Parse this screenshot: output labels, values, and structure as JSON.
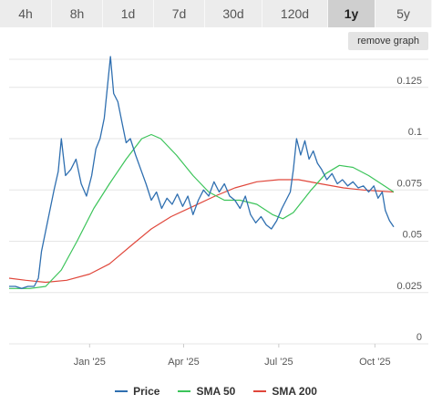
{
  "timeframe_tabs": [
    "4h",
    "8h",
    "1d",
    "7d",
    "30d",
    "120d",
    "1y",
    "5y"
  ],
  "active_tab": "1y",
  "remove_graph_label": "remove graph",
  "colors": {
    "price": "#2f6fb0",
    "sma50": "#3cc45a",
    "sma200": "#e0473b",
    "grid": "#e6e6e6",
    "tab_active": "#cfcfcf",
    "tab": "#ececec"
  },
  "chart_data": {
    "type": "line",
    "title": "",
    "xlabel": "",
    "ylabel": "",
    "x_ticks": [
      "Jan '25",
      "Apr '25",
      "Jul '25",
      "Oct '25"
    ],
    "x_tick_dates": [
      "2025-01-01",
      "2025-04-01",
      "2025-07-01",
      "2025-10-01"
    ],
    "x_range": [
      "2024-10-16",
      "2025-10-19"
    ],
    "y_ticks": [
      0,
      0.025,
      0.05,
      0.075,
      0.1,
      0.125
    ],
    "ylim": [
      0,
      0.14
    ],
    "y_axis_position": "right",
    "grid": "horizontal",
    "legend_position": "bottom",
    "series": [
      {
        "name": "Price",
        "points": [
          [
            "2024-10-16",
            0.028
          ],
          [
            "2024-10-22",
            0.028
          ],
          [
            "2024-10-28",
            0.027
          ],
          [
            "2024-11-03",
            0.028
          ],
          [
            "2024-11-09",
            0.028
          ],
          [
            "2024-11-13",
            0.032
          ],
          [
            "2024-11-16",
            0.045
          ],
          [
            "2024-11-20",
            0.055
          ],
          [
            "2024-11-24",
            0.065
          ],
          [
            "2024-11-28",
            0.075
          ],
          [
            "2024-12-02",
            0.084
          ],
          [
            "2024-12-05",
            0.1
          ],
          [
            "2024-12-09",
            0.082
          ],
          [
            "2024-12-14",
            0.085
          ],
          [
            "2024-12-19",
            0.09
          ],
          [
            "2024-12-24",
            0.078
          ],
          [
            "2024-12-29",
            0.072
          ],
          [
            "2025-01-03",
            0.082
          ],
          [
            "2025-01-07",
            0.095
          ],
          [
            "2025-01-11",
            0.1
          ],
          [
            "2025-01-15",
            0.11
          ],
          [
            "2025-01-18",
            0.125
          ],
          [
            "2025-01-21",
            0.14
          ],
          [
            "2025-01-24",
            0.122
          ],
          [
            "2025-01-28",
            0.118
          ],
          [
            "2025-02-01",
            0.108
          ],
          [
            "2025-02-05",
            0.098
          ],
          [
            "2025-02-09",
            0.1
          ],
          [
            "2025-02-14",
            0.092
          ],
          [
            "2025-02-19",
            0.085
          ],
          [
            "2025-02-24",
            0.078
          ],
          [
            "2025-03-01",
            0.07
          ],
          [
            "2025-03-06",
            0.074
          ],
          [
            "2025-03-11",
            0.066
          ],
          [
            "2025-03-16",
            0.071
          ],
          [
            "2025-03-21",
            0.068
          ],
          [
            "2025-03-26",
            0.073
          ],
          [
            "2025-03-31",
            0.067
          ],
          [
            "2025-04-05",
            0.072
          ],
          [
            "2025-04-10",
            0.063
          ],
          [
            "2025-04-15",
            0.07
          ],
          [
            "2025-04-20",
            0.075
          ],
          [
            "2025-04-25",
            0.072
          ],
          [
            "2025-04-30",
            0.079
          ],
          [
            "2025-05-05",
            0.074
          ],
          [
            "2025-05-10",
            0.078
          ],
          [
            "2025-05-15",
            0.072
          ],
          [
            "2025-05-20",
            0.07
          ],
          [
            "2025-05-25",
            0.066
          ],
          [
            "2025-05-30",
            0.072
          ],
          [
            "2025-06-04",
            0.063
          ],
          [
            "2025-06-09",
            0.059
          ],
          [
            "2025-06-14",
            0.062
          ],
          [
            "2025-06-19",
            0.058
          ],
          [
            "2025-06-24",
            0.056
          ],
          [
            "2025-06-29",
            0.06
          ],
          [
            "2025-07-04",
            0.066
          ],
          [
            "2025-07-08",
            0.07
          ],
          [
            "2025-07-12",
            0.074
          ],
          [
            "2025-07-15",
            0.085
          ],
          [
            "2025-07-18",
            0.1
          ],
          [
            "2025-07-22",
            0.092
          ],
          [
            "2025-07-26",
            0.099
          ],
          [
            "2025-07-30",
            0.09
          ],
          [
            "2025-08-03",
            0.094
          ],
          [
            "2025-08-07",
            0.088
          ],
          [
            "2025-08-11",
            0.085
          ],
          [
            "2025-08-16",
            0.08
          ],
          [
            "2025-08-21",
            0.083
          ],
          [
            "2025-08-26",
            0.078
          ],
          [
            "2025-08-31",
            0.08
          ],
          [
            "2025-09-05",
            0.077
          ],
          [
            "2025-09-10",
            0.079
          ],
          [
            "2025-09-15",
            0.076
          ],
          [
            "2025-09-20",
            0.077
          ],
          [
            "2025-09-25",
            0.074
          ],
          [
            "2025-09-30",
            0.077
          ],
          [
            "2025-10-04",
            0.071
          ],
          [
            "2025-10-08",
            0.074
          ],
          [
            "2025-10-11",
            0.065
          ],
          [
            "2025-10-15",
            0.06
          ],
          [
            "2025-10-19",
            0.057
          ]
        ]
      },
      {
        "name": "SMA 50",
        "points": [
          [
            "2024-10-16",
            0.027
          ],
          [
            "2024-11-05",
            0.027
          ],
          [
            "2024-11-20",
            0.028
          ],
          [
            "2024-12-05",
            0.036
          ],
          [
            "2024-12-20",
            0.05
          ],
          [
            "2025-01-05",
            0.066
          ],
          [
            "2025-01-20",
            0.078
          ],
          [
            "2025-02-05",
            0.09
          ],
          [
            "2025-02-20",
            0.1
          ],
          [
            "2025-03-01",
            0.102
          ],
          [
            "2025-03-10",
            0.1
          ],
          [
            "2025-03-25",
            0.092
          ],
          [
            "2025-04-10",
            0.082
          ],
          [
            "2025-04-25",
            0.074
          ],
          [
            "2025-05-10",
            0.07
          ],
          [
            "2025-05-25",
            0.07
          ],
          [
            "2025-06-10",
            0.068
          ],
          [
            "2025-06-25",
            0.063
          ],
          [
            "2025-07-05",
            0.061
          ],
          [
            "2025-07-15",
            0.064
          ],
          [
            "2025-08-01",
            0.075
          ],
          [
            "2025-08-15",
            0.083
          ],
          [
            "2025-08-28",
            0.087
          ],
          [
            "2025-09-10",
            0.086
          ],
          [
            "2025-09-25",
            0.082
          ],
          [
            "2025-10-10",
            0.077
          ],
          [
            "2025-10-19",
            0.074
          ]
        ]
      },
      {
        "name": "SMA 200",
        "points": [
          [
            "2024-10-16",
            0.032
          ],
          [
            "2024-11-01",
            0.031
          ],
          [
            "2024-11-20",
            0.03
          ],
          [
            "2024-12-10",
            0.031
          ],
          [
            "2025-01-01",
            0.034
          ],
          [
            "2025-01-20",
            0.039
          ],
          [
            "2025-02-10",
            0.048
          ],
          [
            "2025-03-01",
            0.056
          ],
          [
            "2025-03-20",
            0.062
          ],
          [
            "2025-04-10",
            0.067
          ],
          [
            "2025-05-01",
            0.072
          ],
          [
            "2025-05-20",
            0.076
          ],
          [
            "2025-06-10",
            0.079
          ],
          [
            "2025-07-01",
            0.08
          ],
          [
            "2025-07-20",
            0.08
          ],
          [
            "2025-08-10",
            0.078
          ],
          [
            "2025-09-01",
            0.076
          ],
          [
            "2025-09-20",
            0.075
          ],
          [
            "2025-10-19",
            0.074
          ]
        ]
      }
    ]
  },
  "legend": {
    "price": "Price",
    "sma50": "SMA 50",
    "sma200": "SMA 200"
  }
}
